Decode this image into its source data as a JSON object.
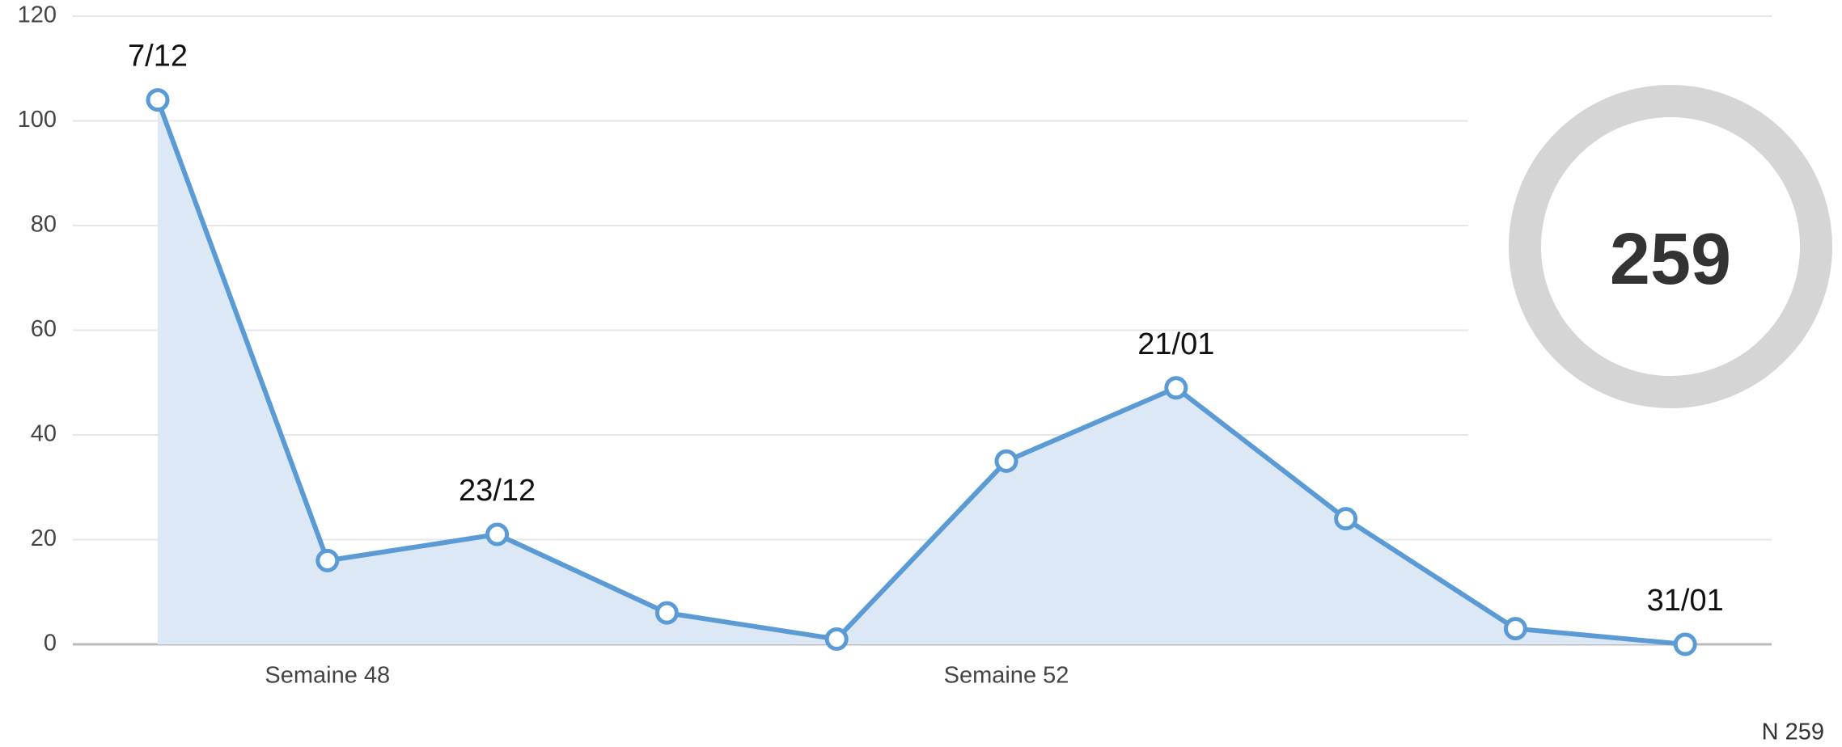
{
  "chart_data": {
    "type": "area",
    "categories": [
      null,
      "Semaine 48",
      null,
      null,
      null,
      "Semaine 52",
      null,
      null,
      null,
      null
    ],
    "values": [
      104,
      16,
      21,
      6,
      1,
      35,
      49,
      24,
      3,
      0
    ],
    "point_labels": [
      "7/12",
      null,
      "23/12",
      null,
      null,
      null,
      "21/01",
      null,
      null,
      "31/01"
    ],
    "color": "#5b9bd5",
    "ylim": [
      0,
      120
    ],
    "yticks": [
      0,
      20,
      40,
      60,
      80,
      100,
      120
    ],
    "grid": true,
    "total": 259,
    "footnote": "N 259"
  }
}
